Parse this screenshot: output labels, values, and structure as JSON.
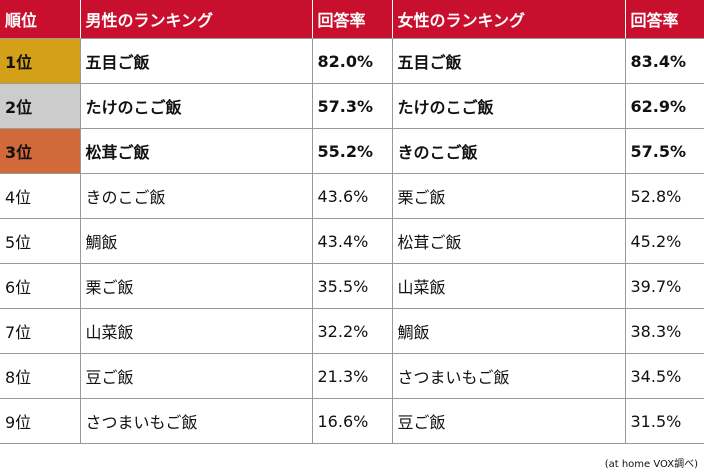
{
  "colors": {
    "header_bg": "#c8102e",
    "gold": "#d4a017",
    "silver": "#cccccc",
    "bronze": "#d2693a"
  },
  "headers": {
    "rank": "順位",
    "male": "男性のランキング",
    "male_rate": "回答率",
    "female": "女性のランキング",
    "female_rate": "回答率"
  },
  "rows": [
    {
      "rank": "1位",
      "male": "五目ご飯",
      "male_rate": "82.0%",
      "female": "五目ご飯",
      "female_rate": "83.4%"
    },
    {
      "rank": "2位",
      "male": "たけのこご飯",
      "male_rate": "57.3%",
      "female": "たけのこご飯",
      "female_rate": "62.9%"
    },
    {
      "rank": "3位",
      "male": "松茸ご飯",
      "male_rate": "55.2%",
      "female": "きのこご飯",
      "female_rate": "57.5%"
    },
    {
      "rank": "4位",
      "male": "きのこご飯",
      "male_rate": "43.6%",
      "female": "栗ご飯",
      "female_rate": "52.8%"
    },
    {
      "rank": "5位",
      "male": "鯛飯",
      "male_rate": "43.4%",
      "female": "松茸ご飯",
      "female_rate": "45.2%"
    },
    {
      "rank": "6位",
      "male": "栗ご飯",
      "male_rate": "35.5%",
      "female": "山菜飯",
      "female_rate": "39.7%"
    },
    {
      "rank": "7位",
      "male": "山菜飯",
      "male_rate": "32.2%",
      "female": "鯛飯",
      "female_rate": "38.3%"
    },
    {
      "rank": "8位",
      "male": "豆ご飯",
      "male_rate": "21.3%",
      "female": "さつまいもご飯",
      "female_rate": "34.5%"
    },
    {
      "rank": "9位",
      "male": "さつまいもご飯",
      "male_rate": "16.6%",
      "female": "豆ご飯",
      "female_rate": "31.5%"
    }
  ],
  "source_note": "(at home VOX調べ)"
}
